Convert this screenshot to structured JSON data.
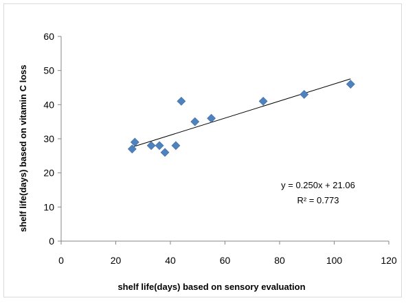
{
  "chart_data": {
    "type": "scatter",
    "title": "",
    "xlabel": "shelf life(days)  based on sensory evaluation",
    "ylabel": "shelf life(days)  based on vitamin C loss",
    "xlim": [
      0,
      120
    ],
    "ylim": [
      0,
      60
    ],
    "x_ticks": [
      0,
      20,
      40,
      60,
      80,
      100,
      120
    ],
    "y_ticks": [
      0,
      10,
      20,
      30,
      40,
      50,
      60
    ],
    "grid": false,
    "legend": "none",
    "marker": "diamond",
    "marker_color": "#4f81bd",
    "series": [
      {
        "points": [
          {
            "x": 26,
            "y": 27
          },
          {
            "x": 27,
            "y": 29
          },
          {
            "x": 33,
            "y": 28
          },
          {
            "x": 36,
            "y": 28
          },
          {
            "x": 38,
            "y": 26
          },
          {
            "x": 42,
            "y": 28
          },
          {
            "x": 44,
            "y": 41
          },
          {
            "x": 49,
            "y": 35
          },
          {
            "x": 55,
            "y": 36
          },
          {
            "x": 74,
            "y": 41
          },
          {
            "x": 89,
            "y": 43
          },
          {
            "x": 106,
            "y": 46
          }
        ]
      }
    ],
    "trendline": {
      "slope": 0.25,
      "intercept": 21.06,
      "x_range": [
        26,
        106
      ],
      "equation_label": "y = 0.250x + 21.06",
      "r2_label": "R² = 0.773"
    }
  }
}
